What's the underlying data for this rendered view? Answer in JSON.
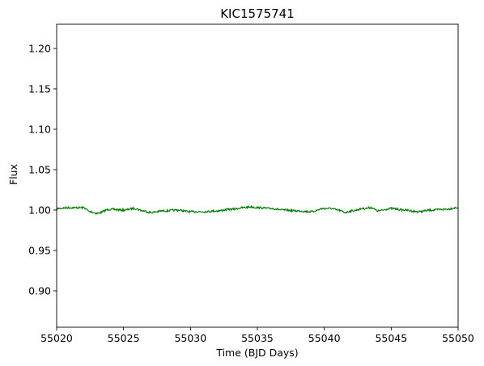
{
  "chart_data": {
    "type": "line",
    "title": "KIC1575741",
    "xlabel": "Time (BJD Days)",
    "ylabel": "Flux",
    "xlim": [
      55020,
      55050
    ],
    "ylim": [
      0.855,
      1.23
    ],
    "x_ticks": [
      55020,
      55025,
      55030,
      55035,
      55040,
      55045,
      55050
    ],
    "x_tick_labels": [
      "55020",
      "55025",
      "55030",
      "55035",
      "55040",
      "55045",
      "55050"
    ],
    "y_ticks": [
      0.9,
      0.95,
      1.0,
      1.05,
      1.1,
      1.15,
      1.2
    ],
    "y_tick_labels": [
      "0.90",
      "0.95",
      "1.00",
      "1.05",
      "1.10",
      "1.15",
      "1.20"
    ],
    "grid": false,
    "line_color": "#008000",
    "series": [
      {
        "x": [
          55020,
          55021,
          55022,
          55022.5,
          55023,
          55024,
          55025,
          55025.8,
          55026.5,
          55027,
          55028,
          55029,
          55030,
          55031,
          55032,
          55033,
          55034,
          55034.5,
          55035,
          55036,
          55037,
          55038,
          55039,
          55040,
          55040.5,
          55041,
          55041.6,
          55042,
          55043,
          55043.5,
          55044,
          55045,
          55046,
          55047,
          55048,
          55049,
          55050
        ],
        "y": [
          1.002,
          1.003,
          1.003,
          0.998,
          0.996,
          1.001,
          1.0,
          1.002,
          0.999,
          0.997,
          0.999,
          1.0,
          0.998,
          0.998,
          0.999,
          1.001,
          1.003,
          1.004,
          1.003,
          1.002,
          1.0,
          0.999,
          0.998,
          1.002,
          1.002,
          1.0,
          0.997,
          0.999,
          1.002,
          1.003,
          0.999,
          1.002,
          1.0,
          0.998,
          1.0,
          1.001,
          1.003
        ]
      }
    ]
  }
}
